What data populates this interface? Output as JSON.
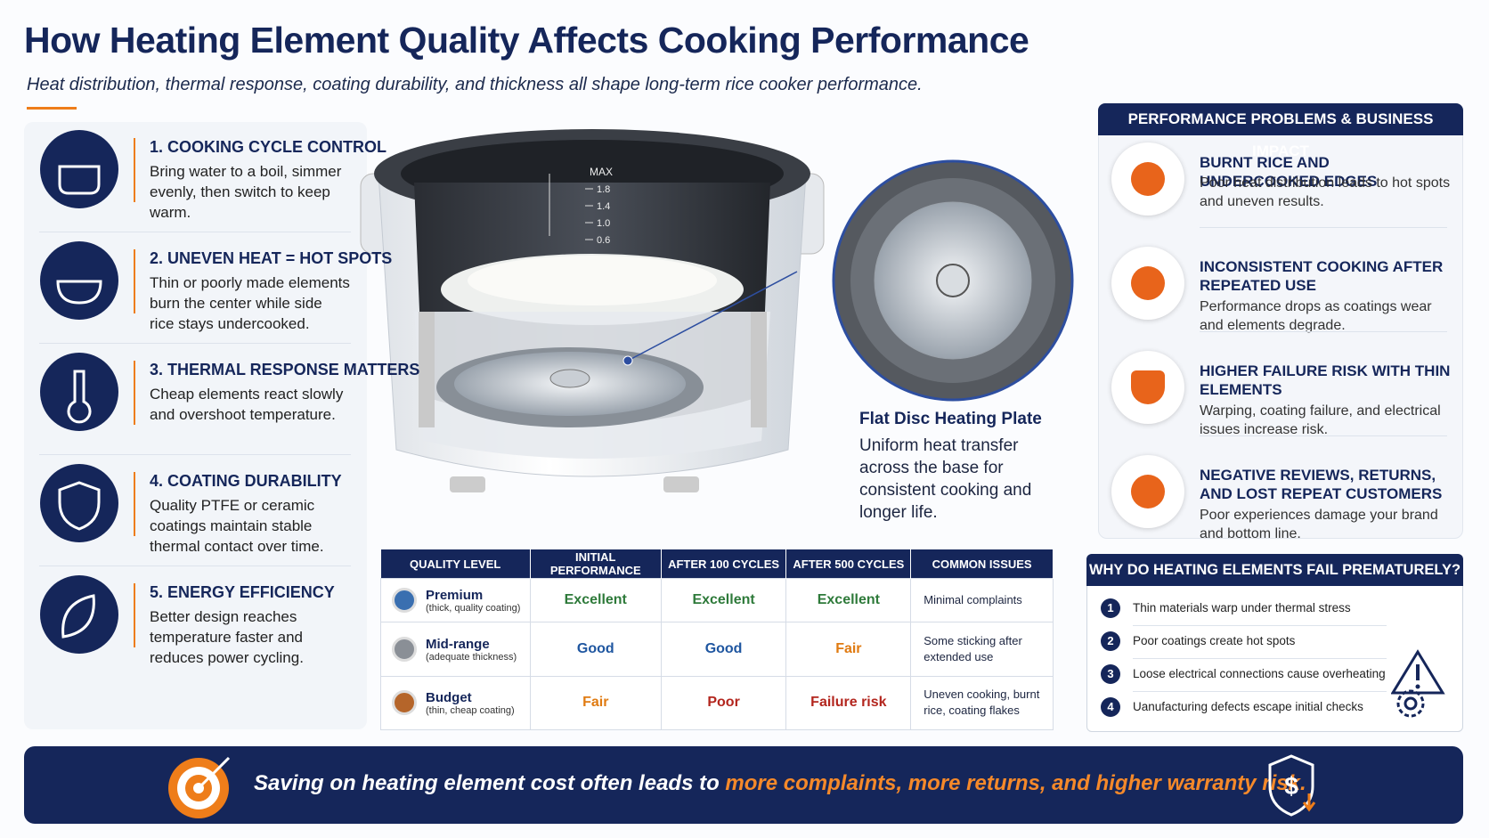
{
  "header": {
    "title": "How Heating Element Quality Affects Cooking Performance",
    "subtitle": "Heat distribution, thermal response, coating durability, and thickness all shape long-term rice cooker performance."
  },
  "features": [
    {
      "title": "1. COOKING CYCLE CONTROL",
      "text": "Bring water to a boil, simmer evenly, then switch to keep warm."
    },
    {
      "title": "2. UNEVEN HEAT = HOT SPOTS",
      "text": "Thin or poorly made elements burn the center while side rice stays undercooked."
    },
    {
      "title": "3. THERMAL RESPONSE MATTERS",
      "text": "Cheap elements react slowly and overshoot temperature."
    },
    {
      "title": "4. COATING DURABILITY",
      "text": "Quality PTFE or ceramic coatings maintain stable thermal contact over time."
    },
    {
      "title": "5. ENERGY EFFICIENCY",
      "text": "Better design reaches temperature faster and reduces power cycling."
    }
  ],
  "cooker": {
    "scale_labels": [
      "MAX",
      "1.8",
      "1.4",
      "1.0",
      "0.6"
    ]
  },
  "callout": {
    "title": "Flat Disc Heating Plate",
    "text": "Uniform heat transfer across the base for consistent cooking and longer life."
  },
  "table": {
    "headers": [
      "QUALITY LEVEL",
      "INITIAL PERFORMANCE",
      "AFTER 100 CYCLES",
      "AFTER 500 CYCLES",
      "COMMON ISSUES"
    ],
    "rows": [
      {
        "level": "Premium",
        "note": "(thick, quality coating)",
        "cells": [
          "Excellent",
          "Excellent",
          "Excellent",
          "Minimal complaints"
        ]
      },
      {
        "level": "Mid-range",
        "note": "(adequate thickness)",
        "cells": [
          "Good",
          "Good",
          "Fair",
          "Some sticking after extended use"
        ]
      },
      {
        "level": "Budget",
        "note": "(thin, cheap coating)",
        "cells": [
          "Fair",
          "Poor",
          "Failure risk",
          "Uneven cooking, burnt rice, coating flakes"
        ]
      }
    ]
  },
  "problems": {
    "heading": "PERFORMANCE PROBLEMS & BUSINESS IMPACT",
    "items": [
      {
        "title": "BURNT RICE AND UNDERCOOKED EDGES",
        "text": "Poor heat distribution leads to hot spots and uneven results."
      },
      {
        "title": "INCONSISTENT COOKING AFTER REPEATED USE",
        "text": "Performance drops as coatings wear and elements degrade."
      },
      {
        "title": "HIGHER FAILURE RISK WITH THIN ELEMENTS",
        "text": "Warping, coating failure, and electrical issues increase risk."
      },
      {
        "title": "NEGATIVE REVIEWS, RETURNS, AND LOST REPEAT CUSTOMERS",
        "text": "Poor experiences damage your brand and bottom line."
      }
    ]
  },
  "failures": {
    "heading": "WHY DO HEATING ELEMENTS FAIL PREMATURELY?",
    "items": [
      {
        "number": "1",
        "text": "Thin materials warp under thermal stress"
      },
      {
        "number": "2",
        "text": "Poor coatings create hot spots"
      },
      {
        "number": "3",
        "text": "Loose electrical connections cause overheating"
      },
      {
        "number": "4",
        "text": "Uanufacturing defects escape initial checks"
      }
    ]
  },
  "footer": {
    "text": "Saving on heating element cost often leads to",
    "highlight": "more complaints, more returns, and higher warranty risk."
  }
}
